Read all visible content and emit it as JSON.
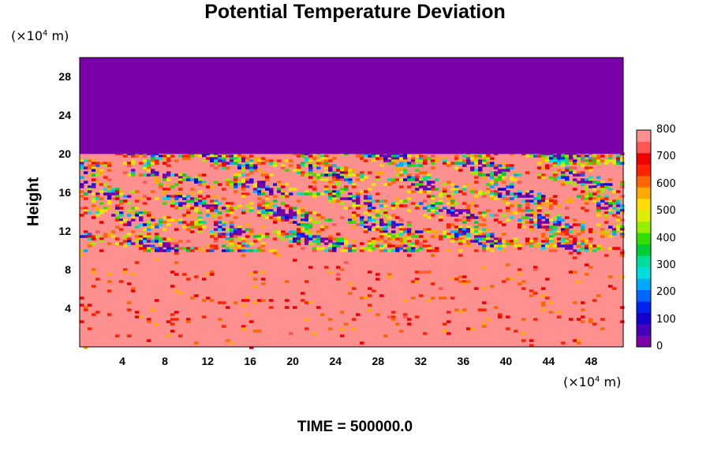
{
  "chart_data": {
    "type": "heatmap",
    "title": "Potential Temperature Deviation",
    "xlabel": "",
    "x_unit": {
      "prefix": "(×10",
      "exp": "4",
      "suffix": " m)"
    },
    "ylabel": "Height",
    "y_unit": {
      "prefix": "(×10",
      "exp": "4",
      "suffix": " m)"
    },
    "xlim": [
      0,
      51
    ],
    "ylim": [
      0,
      30
    ],
    "x_ticks": [
      4,
      8,
      12,
      16,
      20,
      24,
      28,
      32,
      36,
      40,
      44,
      48
    ],
    "y_ticks": [
      4,
      8,
      12,
      16,
      20,
      24,
      28
    ],
    "colorbar": {
      "ticks": [
        0,
        100,
        200,
        300,
        400,
        500,
        600,
        700,
        800
      ],
      "range": [
        0,
        800
      ],
      "colors": [
        "#7a00a8",
        "#4400bb",
        "#1400cc",
        "#0022ee",
        "#0066ff",
        "#00aaff",
        "#00dddd",
        "#00dd99",
        "#00cc33",
        "#33dd00",
        "#99ee00",
        "#ddee00",
        "#ffdd00",
        "#ffaa00",
        "#ff6600",
        "#ff2200",
        "#ee0000",
        "#ff5555",
        "#ff9090"
      ]
    },
    "field_description_values": {
      "upper_region_y_range": [
        20,
        30
      ],
      "upper_region_value": 0,
      "background_value": 800
    },
    "time_text": "TIME = 500000.0"
  }
}
